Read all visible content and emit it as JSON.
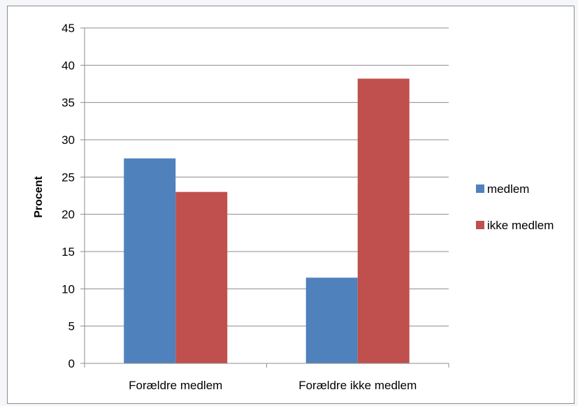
{
  "chart_data": {
    "type": "bar",
    "title": "",
    "xlabel": "",
    "ylabel": "Procent",
    "ylim": [
      0,
      45
    ],
    "ytick_step": 5,
    "grid": true,
    "legend_position": "right",
    "categories": [
      "Forældre medlem",
      "Forældre ikke medlem"
    ],
    "series": [
      {
        "name": "medlem",
        "color": "#4F81BD",
        "values": [
          27.5,
          11.5
        ]
      },
      {
        "name": "ikke medlem",
        "color": "#C0504D",
        "values": [
          23,
          38.2
        ]
      }
    ]
  }
}
